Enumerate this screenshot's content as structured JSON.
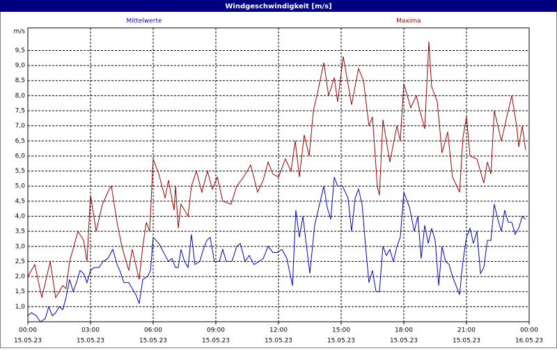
{
  "chart_data": {
    "type": "line",
    "title": "Windgeschwindigkeit [m/s]",
    "y_label": "m/s",
    "xlim": [
      0,
      24
    ],
    "ylim": [
      0.5,
      10.25
    ],
    "grid": true,
    "xticks": [
      {
        "value": 0,
        "label": "00:00",
        "date": "15.05.23"
      },
      {
        "value": 3,
        "label": "03:00",
        "date": "15.05.23"
      },
      {
        "value": 6,
        "label": "06:00",
        "date": "15.05.23"
      },
      {
        "value": 9,
        "label": "09:00",
        "date": "15.05.23"
      },
      {
        "value": 12,
        "label": "12:00",
        "date": "15.05.23"
      },
      {
        "value": 15,
        "label": "15:00",
        "date": "15.05.23"
      },
      {
        "value": 18,
        "label": "18:00",
        "date": "15.05.23"
      },
      {
        "value": 21,
        "label": "21:00",
        "date": "15.05.23"
      },
      {
        "value": 24,
        "label": "00:00",
        "date": "16.05.23"
      }
    ],
    "yticks": [
      {
        "value": 1.0,
        "label": "1,0"
      },
      {
        "value": 1.5,
        "label": "1,5"
      },
      {
        "value": 2.0,
        "label": "2,0"
      },
      {
        "value": 2.5,
        "label": "2,5"
      },
      {
        "value": 3.0,
        "label": "3,0"
      },
      {
        "value": 3.5,
        "label": "3,5"
      },
      {
        "value": 4.0,
        "label": "4,0"
      },
      {
        "value": 4.5,
        "label": "4,5"
      },
      {
        "value": 5.0,
        "label": "5,0"
      },
      {
        "value": 5.5,
        "label": "5,5"
      },
      {
        "value": 6.0,
        "label": "6,0"
      },
      {
        "value": 6.5,
        "label": "6,5"
      },
      {
        "value": 7.0,
        "label": "7,0"
      },
      {
        "value": 7.5,
        "label": "7,5"
      },
      {
        "value": 8.0,
        "label": "8,0"
      },
      {
        "value": 8.5,
        "label": "8,5"
      },
      {
        "value": 9.0,
        "label": "9,0"
      },
      {
        "value": 9.5,
        "label": "9,5"
      }
    ],
    "series": [
      {
        "name": "Mittelwerte",
        "color": "#0000c0",
        "x": [
          0,
          0.17,
          0.4,
          0.6,
          0.83,
          1,
          1.17,
          1.33,
          1.5,
          1.67,
          1.83,
          2,
          2.17,
          2.33,
          2.5,
          2.67,
          2.83,
          3,
          3.17,
          3.4,
          3.6,
          3.83,
          4.07,
          4.27,
          4.4,
          4.6,
          4.83,
          5.17,
          5.33,
          5.5,
          5.73,
          5.87,
          6,
          6.27,
          6.5,
          6.73,
          6.9,
          7.07,
          7.2,
          7.33,
          7.5,
          7.67,
          7.83,
          8,
          8.23,
          8.4,
          8.57,
          8.73,
          8.93,
          9.17,
          9.33,
          9.5,
          9.77,
          10,
          10.17,
          10.4,
          10.6,
          10.83,
          11.07,
          11.27,
          11.5,
          11.73,
          11.93,
          12.17,
          12.4,
          12.67,
          12.83,
          13,
          13.17,
          13.5,
          13.73,
          14,
          14.17,
          14.33,
          14.5,
          14.67,
          14.83,
          15.07,
          15.33,
          15.5,
          15.67,
          15.83,
          16,
          16.17,
          16.33,
          16.5,
          16.67,
          16.83,
          17,
          17.17,
          17.33,
          17.5,
          17.67,
          17.83,
          18,
          18.27,
          18.5,
          18.67,
          18.83,
          19,
          19.17,
          19.33,
          19.5,
          19.67,
          19.83,
          20,
          20.17,
          20.33,
          20.67,
          20.83,
          21,
          21.17,
          21.33,
          21.5,
          21.67,
          21.83,
          22,
          22.17,
          22.33,
          22.5,
          22.67,
          22.83,
          23,
          23.17,
          23.33,
          23.5,
          23.67,
          23.83
        ],
        "values": [
          0.7,
          0.8,
          0.7,
          0.5,
          0.6,
          1.0,
          0.7,
          0.8,
          1.0,
          0.9,
          1.3,
          1.9,
          1.5,
          1.8,
          2.2,
          2.1,
          1.8,
          2.2,
          2.3,
          2.3,
          2.5,
          2.6,
          2.9,
          2.4,
          2.2,
          1.8,
          1.8,
          1.4,
          1.1,
          1.9,
          2.0,
          2.2,
          3.3,
          3.1,
          2.8,
          2.5,
          2.6,
          2.3,
          2.3,
          2.9,
          2.5,
          2.3,
          3.4,
          2.4,
          2.5,
          2.9,
          3.2,
          3.3,
          2.5,
          2.5,
          2.9,
          2.5,
          2.5,
          3.0,
          3.1,
          2.5,
          2.7,
          2.4,
          2.5,
          2.6,
          3.0,
          2.8,
          2.8,
          2.9,
          2.6,
          1.7,
          4.2,
          3.3,
          4.0,
          2.1,
          3.7,
          4.5,
          5.0,
          4.3,
          3.9,
          5.3,
          5.0,
          5.0,
          4.6,
          3.5,
          4.6,
          4.9,
          4.4,
          3.0,
          1.8,
          2.2,
          1.5,
          1.5,
          3.0,
          2.7,
          2.9,
          2.5,
          3.0,
          3.3,
          4.8,
          4.3,
          3.5,
          4.0,
          2.6,
          3.7,
          3.1,
          3.6,
          3.2,
          1.7,
          3.0,
          2.5,
          2.4,
          2.0,
          1.4,
          2.5,
          3.3,
          3.6,
          3.1,
          3.5,
          2.1,
          2.3,
          3.2,
          3.2,
          4.4,
          3.9,
          3.5,
          4.2,
          3.8,
          3.8,
          3.4,
          3.6,
          4.0,
          3.9
        ]
      },
      {
        "name": "Maxima",
        "color": "#a00000",
        "x": [
          0,
          0.33,
          0.67,
          1.07,
          1.33,
          1.67,
          1.83,
          2,
          2.4,
          2.67,
          2.83,
          3,
          3.27,
          3.57,
          3.9,
          4,
          4.27,
          4.5,
          4.83,
          5,
          5.33,
          5.5,
          5.67,
          5.83,
          6,
          6.27,
          6.57,
          6.73,
          7,
          7.07,
          7.2,
          7.33,
          7.67,
          7.83,
          8.07,
          8.33,
          8.6,
          8.83,
          9.07,
          9.33,
          9.73,
          10,
          10.33,
          10.67,
          11,
          11.27,
          11.5,
          11.73,
          12,
          12.33,
          12.6,
          12.8,
          13,
          13.23,
          13.47,
          13.67,
          13.87,
          14.17,
          14.4,
          14.67,
          14.83,
          15.1,
          15.5,
          15.83,
          16.07,
          16.33,
          16.5,
          16.73,
          16.83,
          17,
          17.33,
          17.67,
          17.83,
          18,
          18.33,
          18.6,
          18.77,
          19,
          19.2,
          19.33,
          19.6,
          19.83,
          20.1,
          20.33,
          20.67,
          20.83,
          21,
          21.17,
          21.5,
          21.83,
          22,
          22.17,
          22.33,
          22.67,
          22.93,
          23.17,
          23.4,
          23.5,
          23.67,
          23.83
        ],
        "values": [
          2.0,
          2.4,
          1.3,
          2.5,
          1.3,
          1.7,
          1.6,
          2.5,
          3.5,
          3.2,
          2.5,
          4.7,
          3.5,
          4.4,
          4.9,
          5.0,
          3.8,
          3.0,
          2.2,
          2.9,
          1.9,
          3.0,
          3.8,
          3.5,
          5.9,
          5.4,
          4.6,
          5.2,
          4.2,
          5.0,
          3.6,
          4.4,
          4.0,
          5.0,
          5.5,
          4.8,
          5.5,
          4.9,
          5.3,
          4.5,
          4.4,
          5.0,
          5.3,
          5.7,
          4.8,
          5.2,
          5.8,
          5.4,
          5.3,
          5.9,
          5.5,
          6.5,
          5.3,
          6.7,
          6.0,
          7.5,
          8.1,
          9.1,
          8.0,
          8.6,
          7.8,
          9.3,
          7.7,
          8.9,
          8.5,
          7.0,
          7.3,
          5.0,
          4.7,
          7.2,
          5.8,
          7.0,
          6.5,
          8.4,
          7.6,
          8.0,
          7.5,
          6.9,
          9.8,
          8.3,
          7.8,
          6.1,
          6.8,
          5.3,
          4.8,
          6.6,
          7.3,
          6.0,
          5.9,
          5.1,
          5.8,
          5.4,
          7.5,
          6.5,
          7.3,
          8.0,
          7.0,
          6.3,
          7.0,
          6.2
        ]
      }
    ]
  }
}
